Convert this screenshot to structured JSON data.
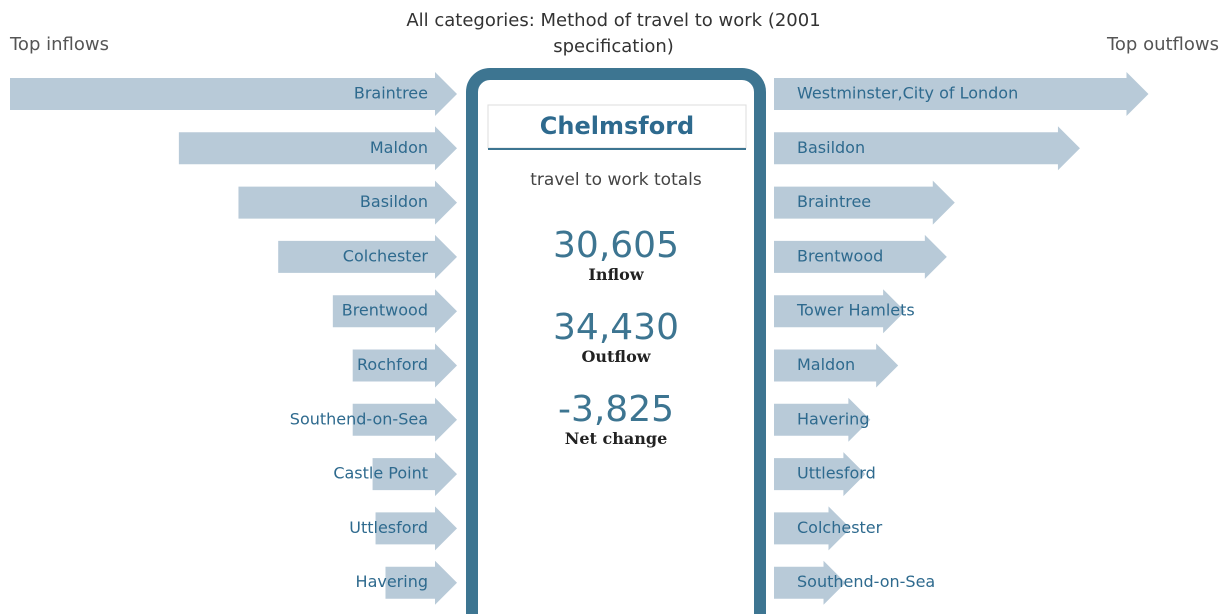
{
  "title": "All categories: Method of travel to work (2001 specification)",
  "inflows_heading": "Top inflows",
  "outflows_heading": "Top outflows",
  "center": {
    "place": "Chelmsford",
    "subtitle": "travel to work totals",
    "stats": [
      {
        "value": "30,605",
        "label": "Inflow"
      },
      {
        "value": "34,430",
        "label": "Outflow"
      },
      {
        "value": "-3,825",
        "label": "Net change"
      }
    ]
  },
  "inflows": {
    "names": [
      "Braintree",
      "Maldon",
      "Basildon",
      "Colchester",
      "Brentwood",
      "Rochford",
      "Southend-on-Sea",
      "Castle Point",
      "Uttlesford",
      "Havering"
    ],
    "values": [
      4500,
      2800,
      2200,
      1800,
      1250,
      1050,
      1050,
      850,
      820,
      720
    ]
  },
  "outflows": {
    "names": [
      "Westminster,City of London",
      "Basildon",
      "Braintree",
      "Brentwood",
      "Tower Hamlets",
      "Maldon",
      "Havering",
      "Uttlesford",
      "Colchester",
      "Southend-on-Sea"
    ],
    "values": [
      3770,
      3080,
      1820,
      1740,
      1320,
      1250,
      970,
      920,
      770,
      720
    ]
  }
}
